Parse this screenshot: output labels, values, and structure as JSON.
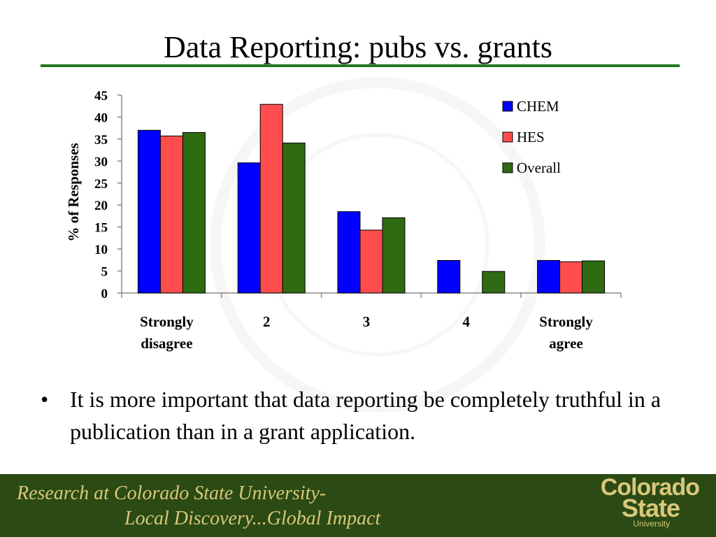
{
  "slide": {
    "title": "Data Reporting: pubs vs. grants",
    "bullet": "It is more important that data reporting be completely truthful in a publication than in a grant application.",
    "footer_line1": "Research at Colorado State University-",
    "footer_line2": "Local Discovery...Global Impact",
    "logo_line1": "Colorado",
    "logo_line2": "State",
    "logo_line3": "University"
  },
  "chart_data": {
    "type": "bar",
    "categories": [
      "Strongly disagree",
      "2",
      "3",
      "4",
      "Strongly agree"
    ],
    "series": [
      {
        "name": "CHEM",
        "color": "#0000ff",
        "values": [
          37,
          29.6,
          18.5,
          7.4,
          7.4
        ]
      },
      {
        "name": "HES",
        "color": "#ff4d4d",
        "values": [
          35.7,
          42.9,
          14.3,
          0,
          7.1
        ]
      },
      {
        "name": "Overall",
        "color": "#2e6b12",
        "values": [
          36.5,
          34.1,
          17.1,
          4.9,
          7.3
        ]
      }
    ],
    "title": "",
    "xlabel": "",
    "ylabel": "% of Responses",
    "ylim": [
      0,
      45
    ],
    "yticks": [
      0,
      5,
      10,
      15,
      20,
      25,
      30,
      35,
      40,
      45
    ],
    "legend_position": "top-right",
    "grid": false
  }
}
